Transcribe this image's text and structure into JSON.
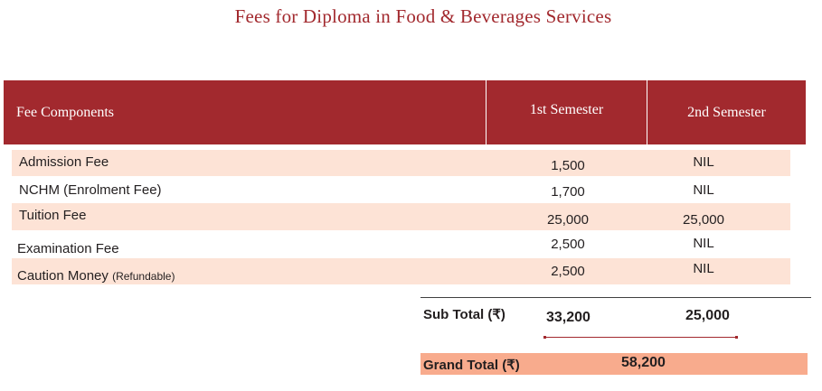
{
  "title": "Fees for Diploma in Food & Beverages Services",
  "table": {
    "headers": {
      "component": "Fee Components",
      "sem1": "1st Semester",
      "sem2": "2nd Semester"
    },
    "rows": [
      {
        "label": "Admission Fee",
        "note": "",
        "sem1": "1,500",
        "sem2": "NIL"
      },
      {
        "label": "NCHM (Enrolment Fee)",
        "note": "",
        "sem1": "1,700",
        "sem2": "NIL"
      },
      {
        "label": "Tuition Fee",
        "note": "",
        "sem1": "25,000",
        "sem2": "25,000"
      },
      {
        "label": "Examination Fee",
        "note": "",
        "sem1": "2,500",
        "sem2": "NIL"
      },
      {
        "label": "Caution Money",
        "note": "(Refundable)",
        "sem1": "2,500",
        "sem2": "NIL"
      }
    ]
  },
  "subtotal": {
    "label": "Sub Total (₹)",
    "sem1": "33,200",
    "sem2": "25,000"
  },
  "grand_total": {
    "label": "Grand Total (₹)",
    "value": "58,200"
  },
  "colors": {
    "accent": "#a2292e",
    "row_shade": "#fde3d6",
    "grand_total_bg": "#f8ab8d"
  }
}
